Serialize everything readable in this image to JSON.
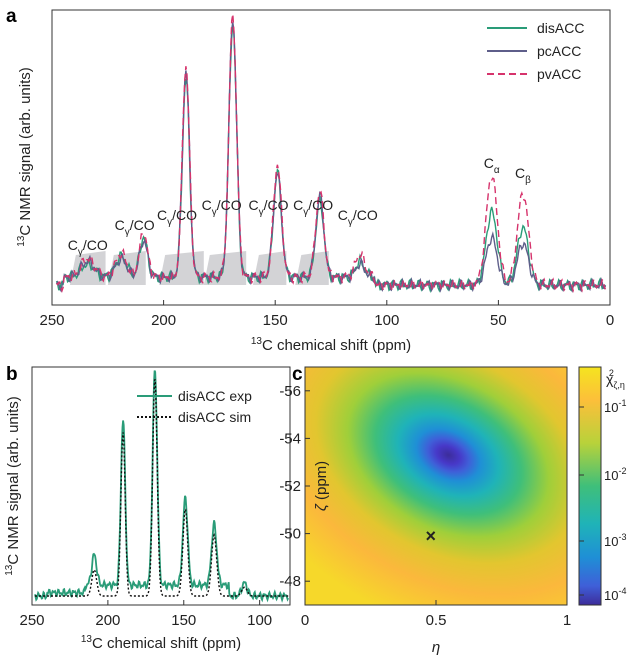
{
  "panels": {
    "a": "a",
    "b": "b",
    "c": "c"
  },
  "colors": {
    "disACC": "#2a9c78",
    "pcACC": "#5e5e8a",
    "pvACC": "#d6336c",
    "sim": "#111111",
    "shade": "#c8c8cc"
  },
  "chart_data": [
    {
      "type": "line",
      "panel": "a",
      "xlabel_prefix": "13",
      "xlabel": "C chemical shift (ppm)",
      "ylabel_prefix": "13",
      "ylabel": "C NMR signal (arb. units)",
      "xlim": [
        250,
        0
      ],
      "xticks": [
        "250",
        "200",
        "150",
        "100",
        "50",
        "0"
      ],
      "legend": [
        "disACC",
        "pcACC",
        "pvACC"
      ],
      "peaks_ppm": [
        234,
        219,
        209,
        190,
        169,
        149,
        130,
        112,
        53,
        39
      ],
      "series": [
        {
          "name": "disACC",
          "heights": [
            0.05,
            0.08,
            0.15,
            0.76,
            0.97,
            0.4,
            0.29,
            0.06,
            0.28,
            0.22
          ]
        },
        {
          "name": "pcACC",
          "heights": [
            0.06,
            0.07,
            0.14,
            0.79,
            0.99,
            0.4,
            0.31,
            0.05,
            0.18,
            0.16
          ]
        },
        {
          "name": "pvACC",
          "heights": [
            0.07,
            0.09,
            0.17,
            0.81,
            1.0,
            0.43,
            0.33,
            0.09,
            0.42,
            0.35
          ]
        }
      ],
      "annotations": [
        {
          "text": "C",
          "sub": "γ",
          "tail": "/CO",
          "ppm": 234
        },
        {
          "text": "C",
          "sub": "γ",
          "tail": "/CO",
          "ppm": 213
        },
        {
          "text": "C",
          "sub": "γ",
          "tail": "/CO",
          "ppm": 194
        },
        {
          "text": "C",
          "sub": "γ",
          "tail": "/CO",
          "ppm": 174
        },
        {
          "text": "C",
          "sub": "γ",
          "tail": "/CO",
          "ppm": 153
        },
        {
          "text": "C",
          "sub": "γ",
          "tail": "/CO",
          "ppm": 133
        },
        {
          "text": "C",
          "sub": "γ",
          "tail": "/CO",
          "ppm": 113
        },
        {
          "text": "C",
          "sub": "α",
          "tail": "",
          "ppm": 53
        },
        {
          "text": "C",
          "sub": "β",
          "tail": "",
          "ppm": 39
        }
      ]
    },
    {
      "type": "line",
      "panel": "b",
      "xlabel_prefix": "13",
      "xlabel": "C chemical shift (ppm)",
      "ylabel_prefix": "13",
      "ylabel": "C NMR signal (arb. units)",
      "xlim": [
        250,
        80
      ],
      "xticks": [
        "250",
        "200",
        "150",
        "100"
      ],
      "legend": [
        "disACC exp",
        "disACC sim"
      ],
      "peaks_ppm": [
        209,
        190,
        169,
        149,
        130,
        110
      ],
      "series": [
        {
          "name": "disACC exp",
          "heights": [
            0.14,
            0.76,
            0.99,
            0.4,
            0.28,
            0.06
          ]
        },
        {
          "name": "disACC sim",
          "heights": [
            0.12,
            0.75,
            1.0,
            0.4,
            0.28,
            0.04
          ]
        }
      ]
    },
    {
      "type": "heatmap",
      "panel": "c",
      "xlabel": "η",
      "ylabel": "ζ (ppm)",
      "xlim": [
        0,
        1
      ],
      "ylim": [
        -47,
        -57
      ],
      "xticks": [
        "0",
        "0.5",
        "1"
      ],
      "yticks": [
        "-56",
        "-54",
        "-52",
        "-50",
        "-48"
      ],
      "colorbar_label": "χ",
      "colorbar_ticks": [
        "10",
        "10",
        "10",
        "10"
      ],
      "colorbar_exponents": [
        "-1",
        "-2",
        "-3",
        "-4"
      ],
      "minimum": {
        "eta": 0.48,
        "zeta": -49.9,
        "marker": "×"
      }
    }
  ]
}
